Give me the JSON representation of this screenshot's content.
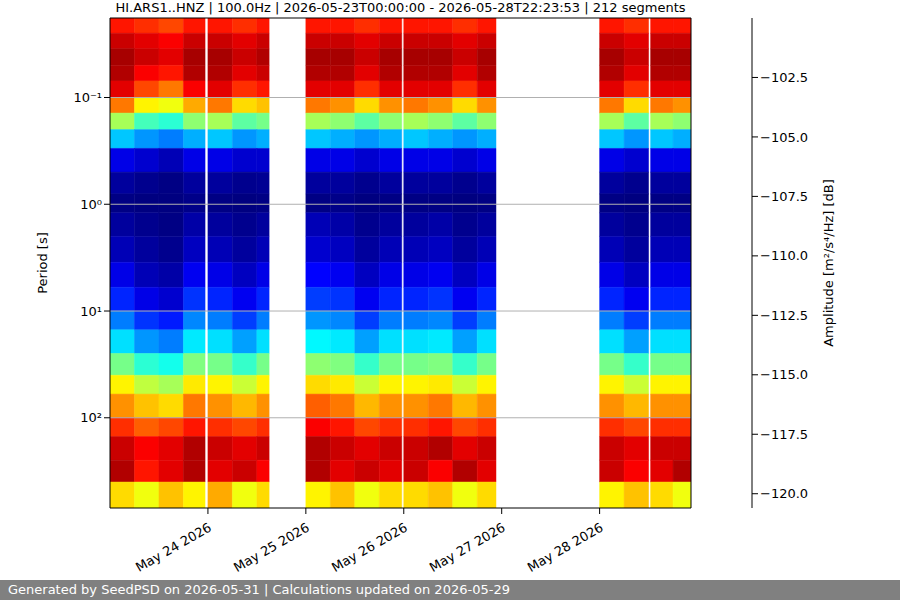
{
  "chart_data": {
    "type": "heatmap",
    "title": "HI.ARS1..HNZ | 100.0Hz | 2026-05-23T00:00:00 - 2026-05-28T22:23:53 | 212 segments",
    "ylabel": "Period [s]",
    "log": "y",
    "grid": true,
    "xlim": [
      "2026-05-23T00:00:00",
      "2026-05-28T22:23:53"
    ],
    "xticks": [
      {
        "value": "2026-05-24T00:00:00",
        "label": "May 24 2026"
      },
      {
        "value": "2026-05-25T00:00:00",
        "label": "May 25 2026"
      },
      {
        "value": "2026-05-26T00:00:00",
        "label": "May 26 2026"
      },
      {
        "value": "2026-05-27T00:00:00",
        "label": "May 27 2026"
      },
      {
        "value": "2026-05-28T00:00:00",
        "label": "May 28 2026"
      }
    ],
    "ylim": [
      0.018,
      700
    ],
    "yticks": [
      {
        "value": 0.1,
        "label": "10⁻¹"
      },
      {
        "value": 1,
        "label": "10⁰"
      },
      {
        "value": 10,
        "label": "10¹"
      },
      {
        "value": 100,
        "label": "10²"
      }
    ],
    "x_edges": [
      "2026-05-23T00:00:00",
      "2026-05-23T06:00:00",
      "2026-05-23T12:00:00",
      "2026-05-23T18:00:00",
      "2026-05-23T23:18:00",
      "2026-05-24T00:00:00",
      "2026-05-24T06:00:00",
      "2026-05-24T12:00:00",
      "2026-05-24T15:00:00",
      "2026-05-25T00:00:00",
      "2026-05-25T06:00:00",
      "2026-05-25T12:00:00",
      "2026-05-25T18:00:00",
      "2026-05-25T23:30:00",
      "2026-05-26T00:00:00",
      "2026-05-26T06:00:00",
      "2026-05-26T12:00:00",
      "2026-05-26T18:00:00",
      "2026-05-26T22:36:00",
      "2026-05-28T00:00:00",
      "2026-05-28T06:00:00",
      "2026-05-28T12:00:00",
      "2026-05-28T12:30:00",
      "2026-05-28T18:00:00",
      "2026-05-28T22:23:53"
    ],
    "y_edges": [
      0.018,
      0.025,
      0.035,
      0.05,
      0.07,
      0.1,
      0.14,
      0.2,
      0.3,
      0.5,
      0.8,
      1.2,
      2,
      3.5,
      6,
      10,
      15,
      25,
      40,
      60,
      100,
      150,
      250,
      400,
      700
    ],
    "z": [
      [
        -103,
        -103.5,
        -104,
        -103,
        null,
        -103,
        -103.5,
        -103,
        null,
        -103,
        -103,
        -103.5,
        -103,
        null,
        -103,
        -103,
        -103.5,
        -103,
        null,
        -103,
        -103.5,
        null,
        -103,
        -103
      ],
      [
        -101.5,
        -102,
        -102.5,
        -101.5,
        null,
        -101.5,
        -102,
        -101.5,
        null,
        -101.5,
        -101.5,
        -102,
        -101.5,
        null,
        -101.5,
        -101.5,
        -102,
        -101.5,
        null,
        -101.5,
        -102,
        null,
        -101.5,
        -101.5
      ],
      [
        -100.8,
        -101.5,
        -102,
        -100.8,
        null,
        -100.8,
        -101.5,
        -101,
        null,
        -100.8,
        -100.8,
        -101.5,
        -100.8,
        null,
        -100.8,
        -100.8,
        -101.5,
        -100.8,
        null,
        -100.8,
        -101.5,
        null,
        -100.8,
        -100.8
      ],
      [
        -101,
        -102.5,
        -103,
        -101,
        null,
        -101,
        -102,
        -101.5,
        null,
        -101,
        -101,
        -102,
        -101,
        null,
        -101,
        -101,
        -102,
        -101,
        null,
        -101,
        -102,
        null,
        -101,
        -101
      ],
      [
        -102,
        -104,
        -105,
        -102.5,
        null,
        -102,
        -103.5,
        -103,
        null,
        -102,
        -102,
        -103.5,
        -102,
        null,
        -102,
        -102,
        -103.5,
        -102,
        null,
        -102,
        -103.5,
        null,
        -102,
        -102
      ],
      [
        -105,
        -107.5,
        -108,
        -106,
        null,
        -105,
        -107,
        -106.5,
        null,
        -105,
        -105.5,
        -107,
        -105.5,
        null,
        -105,
        -105.5,
        -107,
        -105.5,
        null,
        -105,
        -107,
        null,
        -105,
        -105.5
      ],
      [
        -109.5,
        -111.5,
        -112,
        -110,
        null,
        -109.5,
        -111,
        -110.5,
        null,
        -109.5,
        -110,
        -111,
        -110,
        null,
        -109.5,
        -110,
        -111,
        -110,
        null,
        -109.5,
        -111,
        null,
        -109.5,
        -110
      ],
      [
        -114,
        -115,
        -115.5,
        -114.5,
        null,
        -114,
        -115,
        -114.5,
        null,
        -114,
        -114.5,
        -115,
        -114.5,
        null,
        -114,
        -114.5,
        -115,
        -114.5,
        null,
        -114,
        -115,
        null,
        -114,
        -114.5
      ],
      [
        -118.5,
        -119,
        -119.5,
        -118.5,
        null,
        -118.5,
        -119,
        -119,
        null,
        -118.5,
        -118.5,
        -119,
        -118.5,
        null,
        -118.5,
        -118.5,
        -119,
        -118.5,
        null,
        -118.5,
        -119,
        null,
        -118.5,
        -118.5
      ],
      [
        -120,
        -120.3,
        -120.5,
        -120,
        null,
        -120,
        -120.3,
        -120.2,
        null,
        -120,
        -120,
        -120.3,
        -120,
        null,
        -120,
        -120,
        -120.3,
        -120,
        null,
        -120,
        -120.3,
        null,
        -120,
        -120
      ],
      [
        -120.5,
        -120.6,
        -120.6,
        -120.4,
        null,
        -120.5,
        -120.6,
        -120.5,
        null,
        -120.5,
        -120.4,
        -120.6,
        -120.5,
        null,
        -120.5,
        -120.5,
        -120.6,
        -120.5,
        null,
        -120.5,
        -120.6,
        null,
        -120.5,
        -120.5
      ],
      [
        -120,
        -120.3,
        -120.5,
        -119.8,
        null,
        -120,
        -120.3,
        -120,
        null,
        -119.5,
        -119.8,
        -120.3,
        -120,
        null,
        -120,
        -119.8,
        -120.3,
        -120,
        null,
        -120,
        -120.3,
        null,
        -120,
        -120
      ],
      [
        -119.5,
        -120,
        -120.3,
        -119.3,
        null,
        -119.5,
        -120,
        -119.5,
        null,
        -119,
        -119.3,
        -120,
        -119.5,
        null,
        -119.5,
        -119.3,
        -120,
        -119.5,
        null,
        -119.5,
        -120,
        null,
        -119.5,
        -119.5
      ],
      [
        -118.5,
        -119.5,
        -119.8,
        -118.3,
        null,
        -118.5,
        -119.3,
        -118.5,
        null,
        -118,
        -118.3,
        -119.3,
        -118.5,
        null,
        -118.5,
        -118.3,
        -119.3,
        -118.5,
        null,
        -118.5,
        -119.3,
        null,
        -118.5,
        -118.5
      ],
      [
        -117.3,
        -118.5,
        -119,
        -117,
        null,
        -117.3,
        -118.3,
        -117.3,
        null,
        -116.8,
        -117,
        -118.3,
        -117.3,
        null,
        -117.3,
        -117,
        -118.3,
        -117.3,
        null,
        -117.3,
        -118.3,
        null,
        -117.3,
        -117.3
      ],
      [
        -115.5,
        -117,
        -117.5,
        -115.3,
        null,
        -115.5,
        -116.8,
        -115.5,
        null,
        -115,
        -115.3,
        -116.8,
        -115.5,
        null,
        -115.5,
        -115.3,
        -116.8,
        -115.5,
        null,
        -115.5,
        -116.8,
        null,
        -115.5,
        -115.5
      ],
      [
        -113.5,
        -115,
        -115.5,
        -113.3,
        null,
        -113.5,
        -114.8,
        -113.5,
        null,
        -113,
        -113.3,
        -114.8,
        -113.5,
        null,
        -113.5,
        -113.3,
        -114.8,
        -113.5,
        null,
        -113.5,
        -114.8,
        null,
        -113.5,
        -113.5
      ],
      [
        -110.5,
        -112,
        -112.5,
        -110.3,
        null,
        -110.5,
        -111.8,
        -110.5,
        null,
        -110,
        -110.3,
        -111.8,
        -110.5,
        null,
        -110.5,
        -110.3,
        -111.8,
        -110.5,
        null,
        -110.5,
        -111.8,
        null,
        -110.5,
        -110.5
      ],
      [
        -107.5,
        -109,
        -109.5,
        -107.3,
        null,
        -107.5,
        -108.8,
        -107.5,
        null,
        -107,
        -107.3,
        -108.8,
        -107.5,
        null,
        -107.5,
        -107.3,
        -108.8,
        -107.5,
        null,
        -107.5,
        -108.8,
        null,
        -107.5,
        -107.5
      ],
      [
        -105.5,
        -106.5,
        -107,
        -105,
        null,
        -105.5,
        -106.3,
        -105.5,
        null,
        -104.5,
        -105,
        -106.3,
        -105.5,
        null,
        -105.5,
        -105,
        -106.3,
        -105.5,
        null,
        -105.5,
        -106.3,
        null,
        -105.5,
        -105.5
      ],
      [
        -103.5,
        -104.5,
        -104,
        -103,
        null,
        -103.5,
        -104,
        -103.5,
        null,
        -102.5,
        -103,
        -104,
        -103.5,
        null,
        -103.5,
        -103,
        -104,
        -103.5,
        null,
        -103.5,
        -104,
        null,
        -103.5,
        -103.5
      ],
      [
        -101.5,
        -102.5,
        -102,
        -101,
        null,
        -101.5,
        -102,
        -101.5,
        null,
        -101,
        -101.5,
        -102,
        -101.5,
        null,
        -101.5,
        -101,
        -102,
        -101.5,
        null,
        -101.5,
        -102,
        null,
        -101.5,
        -101.5
      ],
      [
        -101,
        -103,
        -102,
        -101,
        null,
        -102,
        -101.5,
        -102.5,
        null,
        -101,
        -102,
        -101.5,
        -102,
        null,
        -101.5,
        -102.5,
        -101,
        -102,
        null,
        -101.5,
        -102.5,
        null,
        -102,
        -101
      ],
      [
        -107,
        -108,
        -106.5,
        -107.5,
        null,
        -106,
        -108,
        -107,
        null,
        -107.5,
        -106.5,
        -108,
        -107,
        null,
        -107,
        -106.5,
        -108,
        -107,
        null,
        -107.5,
        -106.5,
        null,
        -107,
        -108
      ]
    ],
    "colorbar": {
      "label": "Amplitude [m²/s⁴/Hz] [dB]",
      "clim": [
        -120.6,
        -100
      ],
      "ticks": [
        {
          "value": -120,
          "label": "−120.0"
        },
        {
          "value": -117.5,
          "label": "−117.5"
        },
        {
          "value": -115,
          "label": "−115.0"
        },
        {
          "value": -112.5,
          "label": "−112.5"
        },
        {
          "value": -110,
          "label": "−110.0"
        },
        {
          "value": -107.5,
          "label": "−107.5"
        },
        {
          "value": -105,
          "label": "−105.0"
        },
        {
          "value": -102.5,
          "label": "−102.5"
        }
      ]
    },
    "footer": "Generated by SeedPSD on 2026-05-31 | Calculations updated on 2026-05-29"
  }
}
